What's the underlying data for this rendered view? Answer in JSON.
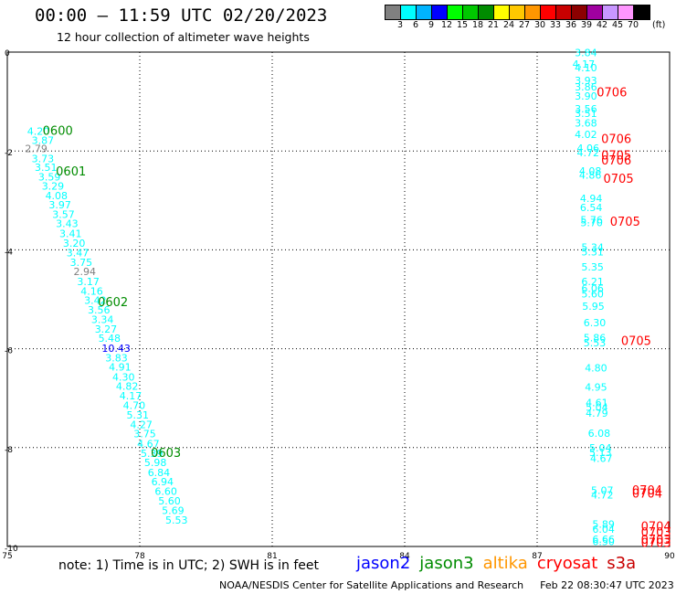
{
  "header": {
    "title": "00:00 — 11:59 UTC 02/20/2023",
    "subtitle": "12 hour collection of altimeter wave heights"
  },
  "colorbar": {
    "labels": [
      "3",
      "6",
      "9",
      "12",
      "15",
      "18",
      "21",
      "24",
      "27",
      "30",
      "33",
      "36",
      "39",
      "42",
      "45",
      "70"
    ],
    "unit": "(ft)",
    "colors": [
      "#808080",
      "#00ffff",
      "#00b4ff",
      "#0000ff",
      "#00ff00",
      "#00c800",
      "#008c00",
      "#ffff00",
      "#ffc800",
      "#ff9600",
      "#ff0000",
      "#c80000",
      "#8c0000",
      "#a000a0",
      "#c896ff",
      "#ff96ff",
      "#000000"
    ]
  },
  "note": "note:  1) Time is in UTC;  2) SWH is in feet",
  "satellites": [
    {
      "name": "jason2",
      "color": "#0000ff"
    },
    {
      "name": "jason3",
      "color": "#008c00"
    },
    {
      "name": "altika",
      "color": "#ff9600"
    },
    {
      "name": "cryosat",
      "color": "#ff0000"
    },
    {
      "name": "s3a",
      "color": "#c80000"
    }
  ],
  "footer": {
    "org": "NOAA/NESDIS Center for Satellite Applications and Research",
    "timestamp": "Feb 22 08:30:47 UTC 2023"
  },
  "chart_data": {
    "type": "scatter",
    "xlim": [
      75,
      90
    ],
    "ylim": [
      -10,
      0
    ],
    "xticks": [
      75,
      78,
      81,
      84,
      87,
      90
    ],
    "yticks": [
      0,
      -2,
      -4,
      -6,
      -8,
      -10
    ],
    "grid": true,
    "points": [
      {
        "x": 75.45,
        "y": -1.6,
        "v": "4.20",
        "c": "#00ffff"
      },
      {
        "x": 75.55,
        "y": -1.78,
        "v": "3.87",
        "c": "#00ffff"
      },
      {
        "x": 75.4,
        "y": -1.95,
        "v": "2.79",
        "c": "#808080"
      },
      {
        "x": 75.55,
        "y": -2.15,
        "v": "3.73",
        "c": "#00ffff"
      },
      {
        "x": 75.62,
        "y": -2.33,
        "v": "3.51",
        "c": "#00ffff"
      },
      {
        "x": 75.7,
        "y": -2.52,
        "v": "3.59",
        "c": "#00ffff"
      },
      {
        "x": 75.78,
        "y": -2.71,
        "v": "3.29",
        "c": "#00ffff"
      },
      {
        "x": 75.86,
        "y": -2.9,
        "v": "4.08",
        "c": "#00ffff"
      },
      {
        "x": 75.94,
        "y": -3.09,
        "v": "3.97",
        "c": "#00ffff"
      },
      {
        "x": 76.02,
        "y": -3.28,
        "v": "3.57",
        "c": "#00ffff"
      },
      {
        "x": 76.1,
        "y": -3.47,
        "v": "3.43",
        "c": "#00ffff"
      },
      {
        "x": 76.18,
        "y": -3.67,
        "v": "3.41",
        "c": "#00ffff"
      },
      {
        "x": 76.26,
        "y": -3.86,
        "v": "3.20",
        "c": "#00ffff"
      },
      {
        "x": 76.34,
        "y": -4.06,
        "v": "3.47",
        "c": "#00ffff"
      },
      {
        "x": 76.42,
        "y": -4.25,
        "v": "3.75",
        "c": "#00ffff"
      },
      {
        "x": 76.5,
        "y": -4.44,
        "v": "2.94",
        "c": "#808080"
      },
      {
        "x": 76.58,
        "y": -4.64,
        "v": "3.17",
        "c": "#00ffff"
      },
      {
        "x": 76.66,
        "y": -4.83,
        "v": "4.16",
        "c": "#00ffff"
      },
      {
        "x": 76.74,
        "y": -5.02,
        "v": "3.42",
        "c": "#00ffff"
      },
      {
        "x": 76.82,
        "y": -5.21,
        "v": "3.56",
        "c": "#00ffff"
      },
      {
        "x": 76.9,
        "y": -5.41,
        "v": "3.34",
        "c": "#00ffff"
      },
      {
        "x": 76.98,
        "y": -5.6,
        "v": "3.27",
        "c": "#00ffff"
      },
      {
        "x": 77.06,
        "y": -5.79,
        "v": "5.48",
        "c": "#00ffff"
      },
      {
        "x": 77.14,
        "y": -5.99,
        "v": "10.43",
        "c": "#0000ff"
      },
      {
        "x": 77.22,
        "y": -6.18,
        "v": "3.83",
        "c": "#00ffff"
      },
      {
        "x": 77.3,
        "y": -6.37,
        "v": "4.91",
        "c": "#00ffff"
      },
      {
        "x": 77.38,
        "y": -6.57,
        "v": "4.30",
        "c": "#00ffff"
      },
      {
        "x": 77.46,
        "y": -6.76,
        "v": "4.82",
        "c": "#00ffff"
      },
      {
        "x": 77.54,
        "y": -6.95,
        "v": "4.17",
        "c": "#00ffff"
      },
      {
        "x": 77.62,
        "y": -7.14,
        "v": "4.70",
        "c": "#00ffff"
      },
      {
        "x": 77.7,
        "y": -7.34,
        "v": "5.31",
        "c": "#00ffff"
      },
      {
        "x": 77.78,
        "y": -7.53,
        "v": "4.27",
        "c": "#00ffff"
      },
      {
        "x": 77.86,
        "y": -7.72,
        "v": "3.75",
        "c": "#00ffff"
      },
      {
        "x": 77.94,
        "y": -7.92,
        "v": "4.67",
        "c": "#00ffff"
      },
      {
        "x": 78.02,
        "y": -8.11,
        "v": "5.39",
        "c": "#00ffff"
      },
      {
        "x": 78.1,
        "y": -8.3,
        "v": "5.98",
        "c": "#00ffff"
      },
      {
        "x": 78.18,
        "y": -8.5,
        "v": "6.84",
        "c": "#00ffff"
      },
      {
        "x": 78.26,
        "y": -8.69,
        "v": "6.94",
        "c": "#00ffff"
      },
      {
        "x": 78.34,
        "y": -8.88,
        "v": "6.60",
        "c": "#00ffff"
      },
      {
        "x": 78.42,
        "y": -9.08,
        "v": "5.60",
        "c": "#00ffff"
      },
      {
        "x": 78.5,
        "y": -9.27,
        "v": "5.69",
        "c": "#00ffff"
      },
      {
        "x": 78.58,
        "y": -9.46,
        "v": "5.53",
        "c": "#00ffff"
      },
      {
        "x": 87.85,
        "y": -0.01,
        "v": "3.84",
        "c": "#00ffff"
      },
      {
        "x": 87.8,
        "y": -0.24,
        "v": "4.17",
        "c": "#00ffff"
      },
      {
        "x": 87.85,
        "y": -0.31,
        "v": "4.10",
        "c": "#00ffff"
      },
      {
        "x": 87.85,
        "y": -0.57,
        "v": "3.93",
        "c": "#00ffff"
      },
      {
        "x": 87.85,
        "y": -0.7,
        "v": "3.86",
        "c": "#00ffff"
      },
      {
        "x": 87.85,
        "y": -0.89,
        "v": "3.90",
        "c": "#00ffff"
      },
      {
        "x": 87.85,
        "y": -1.15,
        "v": "3.56",
        "c": "#00ffff"
      },
      {
        "x": 87.85,
        "y": -1.24,
        "v": "3.51",
        "c": "#00ffff"
      },
      {
        "x": 87.85,
        "y": -1.43,
        "v": "3.68",
        "c": "#00ffff"
      },
      {
        "x": 87.85,
        "y": -1.66,
        "v": "4.02",
        "c": "#00ffff"
      },
      {
        "x": 87.9,
        "y": -1.94,
        "v": "4.06",
        "c": "#00ffff"
      },
      {
        "x": 87.9,
        "y": -2.03,
        "v": "4.72",
        "c": "#00ffff"
      },
      {
        "x": 87.95,
        "y": -2.4,
        "v": "4.08",
        "c": "#00ffff"
      },
      {
        "x": 87.95,
        "y": -2.49,
        "v": "4.86",
        "c": "#00ffff"
      },
      {
        "x": 87.97,
        "y": -2.96,
        "v": "4.94",
        "c": "#00ffff"
      },
      {
        "x": 87.97,
        "y": -3.14,
        "v": "6.54",
        "c": "#00ffff"
      },
      {
        "x": 87.98,
        "y": -3.39,
        "v": "5.76",
        "c": "#00ffff"
      },
      {
        "x": 87.98,
        "y": -3.45,
        "v": "5.70",
        "c": "#00ffff"
      },
      {
        "x": 88.0,
        "y": -3.95,
        "v": "5.34",
        "c": "#00ffff"
      },
      {
        "x": 88.0,
        "y": -4.04,
        "v": "5.31",
        "c": "#00ffff"
      },
      {
        "x": 88.0,
        "y": -4.34,
        "v": "5.35",
        "c": "#00ffff"
      },
      {
        "x": 88.0,
        "y": -4.64,
        "v": "6.21",
        "c": "#00ffff"
      },
      {
        "x": 88.0,
        "y": -4.78,
        "v": "6.06",
        "c": "#00ffff"
      },
      {
        "x": 88.0,
        "y": -4.89,
        "v": "5.60",
        "c": "#00ffff"
      },
      {
        "x": 88.02,
        "y": -5.14,
        "v": "5.95",
        "c": "#00ffff"
      },
      {
        "x": 88.05,
        "y": -5.47,
        "v": "6.30",
        "c": "#00ffff"
      },
      {
        "x": 88.05,
        "y": -5.78,
        "v": "5.86",
        "c": "#00ffff"
      },
      {
        "x": 88.05,
        "y": -5.88,
        "v": "5.53",
        "c": "#00ffff"
      },
      {
        "x": 88.08,
        "y": -6.39,
        "v": "4.80",
        "c": "#00ffff"
      },
      {
        "x": 88.08,
        "y": -6.77,
        "v": "4.95",
        "c": "#00ffff"
      },
      {
        "x": 88.1,
        "y": -7.09,
        "v": "4.61",
        "c": "#00ffff"
      },
      {
        "x": 88.1,
        "y": -7.18,
        "v": "5.04",
        "c": "#00ffff"
      },
      {
        "x": 88.1,
        "y": -7.3,
        "v": "4.79",
        "c": "#00ffff"
      },
      {
        "x": 88.15,
        "y": -7.71,
        "v": "6.08",
        "c": "#00ffff"
      },
      {
        "x": 88.18,
        "y": -8.0,
        "v": "5.04",
        "c": "#00ffff"
      },
      {
        "x": 88.18,
        "y": -8.1,
        "v": "5.13",
        "c": "#00ffff"
      },
      {
        "x": 88.2,
        "y": -8.22,
        "v": "4.67",
        "c": "#00ffff"
      },
      {
        "x": 88.22,
        "y": -8.86,
        "v": "5.07",
        "c": "#00ffff"
      },
      {
        "x": 88.22,
        "y": -8.96,
        "v": "4.72",
        "c": "#00ffff"
      },
      {
        "x": 88.25,
        "y": -9.55,
        "v": "5.89",
        "c": "#00ffff"
      },
      {
        "x": 88.25,
        "y": -9.65,
        "v": "6.04",
        "c": "#00ffff"
      },
      {
        "x": 88.25,
        "y": -9.85,
        "v": "6.66",
        "c": "#00ffff"
      },
      {
        "x": 88.25,
        "y": -9.9,
        "v": "6.50",
        "c": "#00ffff"
      }
    ],
    "labels": [
      {
        "x": 75.8,
        "y": -1.58,
        "t": "0600",
        "c": "#008c00"
      },
      {
        "x": 76.1,
        "y": -2.4,
        "t": "0601",
        "c": "#008c00"
      },
      {
        "x": 77.05,
        "y": -5.05,
        "t": "0602",
        "c": "#008c00"
      },
      {
        "x": 78.25,
        "y": -8.1,
        "t": "0603",
        "c": "#008c00"
      },
      {
        "x": 88.35,
        "y": -0.8,
        "t": "0706",
        "c": "#ff0000"
      },
      {
        "x": 88.45,
        "y": -1.75,
        "t": "0706",
        "c": "#ff0000"
      },
      {
        "x": 88.45,
        "y": -2.08,
        "t": "0705",
        "c": "#ff0000"
      },
      {
        "x": 88.45,
        "y": -2.18,
        "t": "0706",
        "c": "#ff0000"
      },
      {
        "x": 88.5,
        "y": -2.55,
        "t": "0705",
        "c": "#ff0000"
      },
      {
        "x": 88.65,
        "y": -3.42,
        "t": "0705",
        "c": "#ff0000"
      },
      {
        "x": 88.9,
        "y": -5.83,
        "t": "0705",
        "c": "#ff0000"
      },
      {
        "x": 89.15,
        "y": -8.85,
        "t": "0704",
        "c": "#ff0000"
      },
      {
        "x": 89.15,
        "y": -8.92,
        "t": "0704",
        "c": "#ff0000"
      },
      {
        "x": 89.35,
        "y": -9.58,
        "t": "0704",
        "c": "#ff0000"
      },
      {
        "x": 89.35,
        "y": -9.7,
        "t": "0703",
        "c": "#ff0000"
      },
      {
        "x": 89.35,
        "y": -9.85,
        "t": "0703",
        "c": "#ff0000"
      },
      {
        "x": 89.35,
        "y": -9.92,
        "t": "0703",
        "c": "#ff0000"
      }
    ]
  }
}
